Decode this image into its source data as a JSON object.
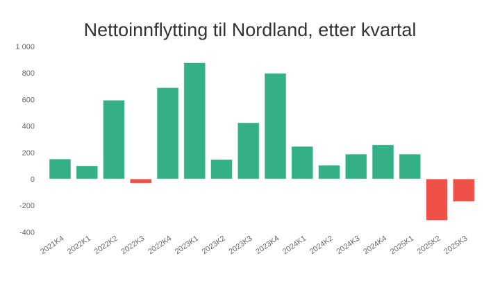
{
  "chart_data": {
    "type": "bar",
    "title": "Nettoinnflytting til Nordland, etter kvartal",
    "xlabel": "",
    "ylabel": "",
    "ylim": [
      -400,
      1000
    ],
    "yticks": [
      1000,
      800,
      600,
      400,
      200,
      0,
      -200,
      -400
    ],
    "ytick_labels": [
      "1 000",
      "800",
      "600",
      "400",
      "200",
      "0",
      "-200",
      "-400"
    ],
    "grid": false,
    "categories": [
      "2021K4",
      "2022K1",
      "2022K2",
      "2022K3",
      "2022K4",
      "2023K1",
      "2023K2",
      "2023K3",
      "2023K4",
      "2024K1",
      "2024K2",
      "2024K3",
      "2024K4",
      "2025K1",
      "2025K2",
      "2025K3"
    ],
    "values": [
      151,
      100,
      595,
      -33,
      689,
      877,
      147,
      425,
      798,
      246,
      104,
      188,
      258,
      188,
      -312,
      -170
    ],
    "colors": {
      "positive": "#34b086",
      "negative": "#ef5048"
    }
  }
}
